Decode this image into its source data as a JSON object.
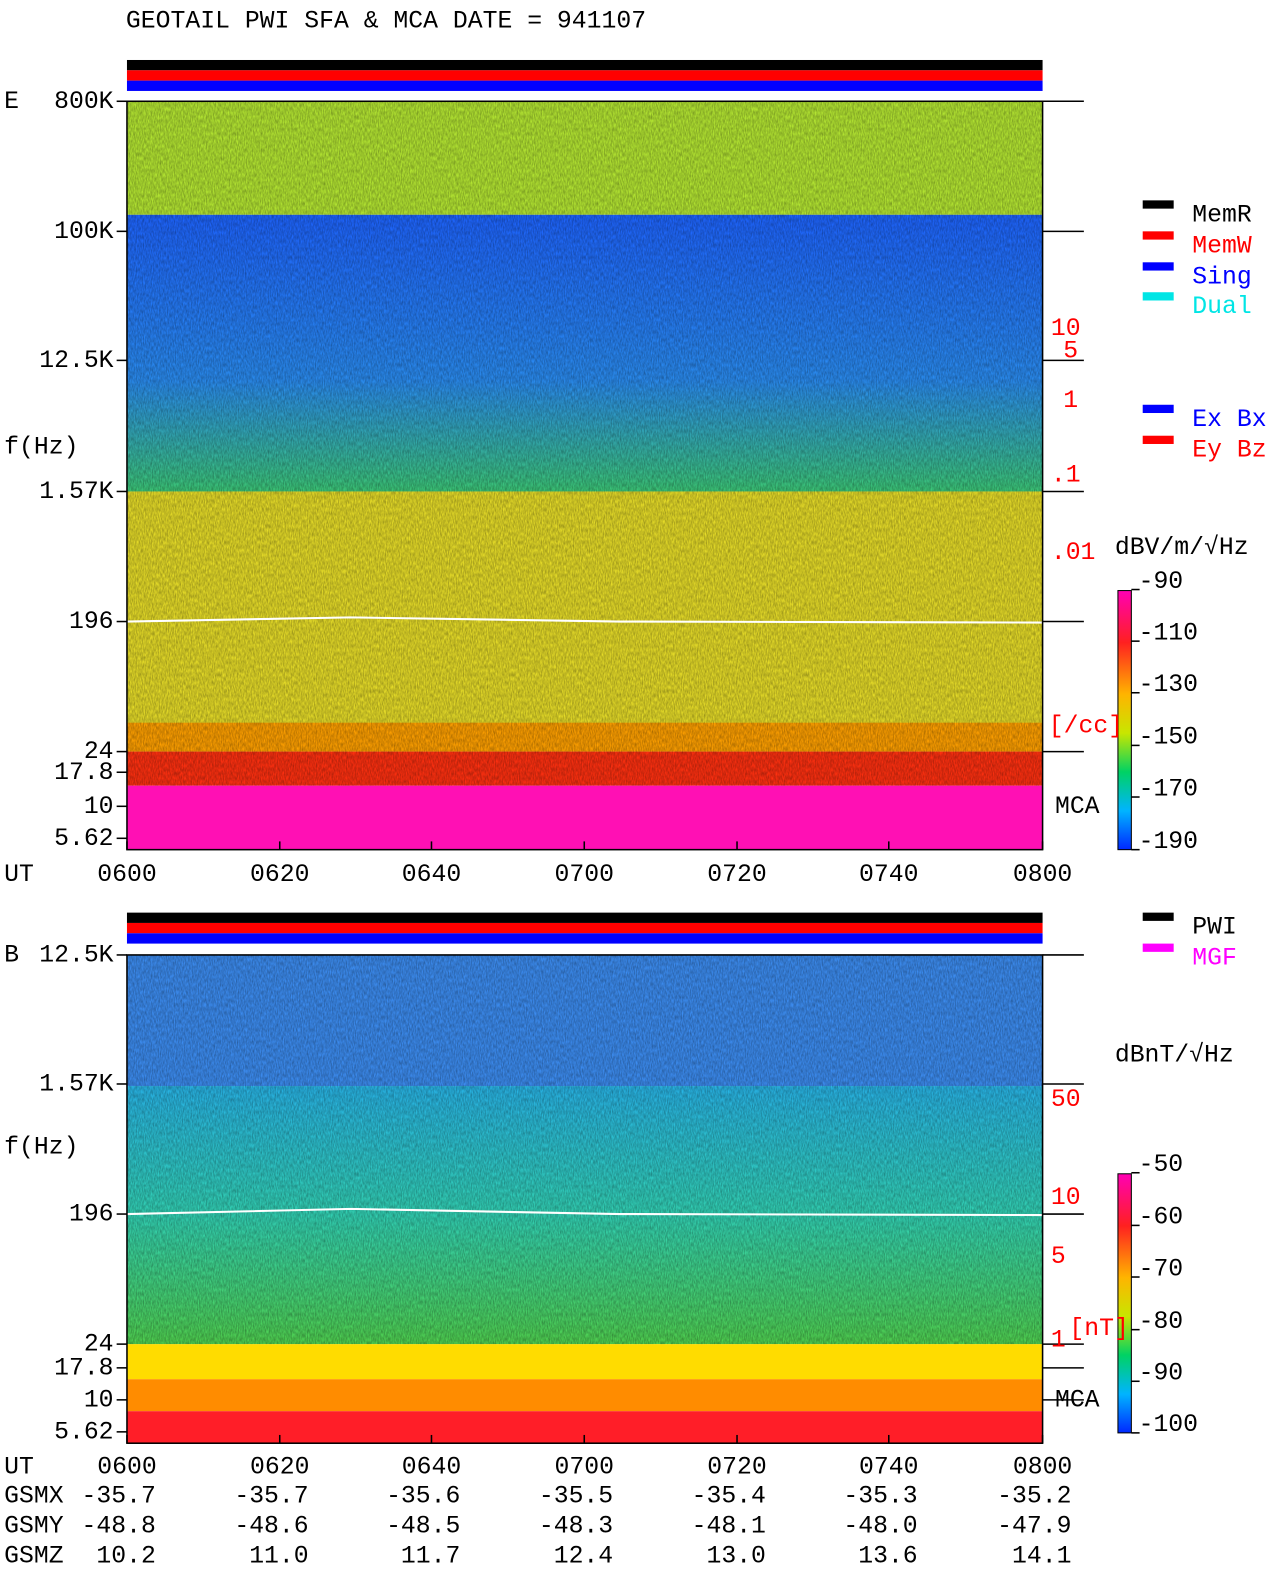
{
  "title": "GEOTAIL  PWI SFA & MCA   DATE = 941107",
  "panels": [
    {
      "label": "E",
      "ylabel": "f(Hz)",
      "yticks": [
        "800K",
        "100K",
        "12.5K",
        "1.57K",
        "196",
        "24",
        "17.8",
        "10",
        "5.62"
      ],
      "right_ticks": [
        "10",
        "5",
        "1",
        ".1",
        ".01",
        "[/cc]"
      ],
      "mca": "MCA",
      "xlabel": "UT",
      "xticks": [
        "0600",
        "0620",
        "0640",
        "0700",
        "0720",
        "0740",
        "0800"
      ],
      "colorbar_unit": "dBV/m/√Hz",
      "colorbar_ticks": [
        "-90",
        "-110",
        "-130",
        "-150",
        "-170",
        "-190"
      ],
      "legend": [
        {
          "name": "MemR",
          "color": "#000000"
        },
        {
          "name": "MemW",
          "color": "#ff0000"
        },
        {
          "name": "Sing",
          "color": "#0000ff"
        },
        {
          "name": "Dual",
          "color": "#00e5e5"
        },
        {
          "name": "Ex Bx",
          "color": "#0000ff"
        },
        {
          "name": "Ey Bz",
          "color": "#ff0000"
        }
      ]
    },
    {
      "label": "B",
      "ylabel": "f(Hz)",
      "yticks": [
        "12.5K",
        "1.57K",
        "196",
        "24",
        "17.8",
        "10",
        "5.62"
      ],
      "right_ticks": [
        "50",
        "10",
        "5",
        "1",
        "[nT]"
      ],
      "mca": "MCA",
      "xlabel": "UT",
      "xticks": [
        "0600",
        "0620",
        "0640",
        "0700",
        "0720",
        "0740",
        "0800"
      ],
      "colorbar_unit": "dBnT/√Hz",
      "colorbar_ticks": [
        "-50",
        "-60",
        "-70",
        "-80",
        "-90",
        "-100"
      ],
      "legend": [
        {
          "name": "PWI",
          "color": "#000000"
        },
        {
          "name": "MGF",
          "color": "#ff00ff"
        }
      ]
    }
  ],
  "orbit": {
    "rows": [
      {
        "label": "GSMX",
        "values": [
          "-35.7",
          "-35.7",
          "-35.6",
          "-35.5",
          "-35.4",
          "-35.3",
          "-35.2"
        ]
      },
      {
        "label": "GSMY",
        "values": [
          "-48.8",
          "-48.6",
          "-48.5",
          "-48.3",
          "-48.1",
          "-48.0",
          "-47.9"
        ]
      },
      {
        "label": "GSMZ",
        "values": [
          "10.2",
          "11.0",
          "11.7",
          "12.4",
          "13.0",
          "13.6",
          "14.1"
        ]
      }
    ]
  }
}
